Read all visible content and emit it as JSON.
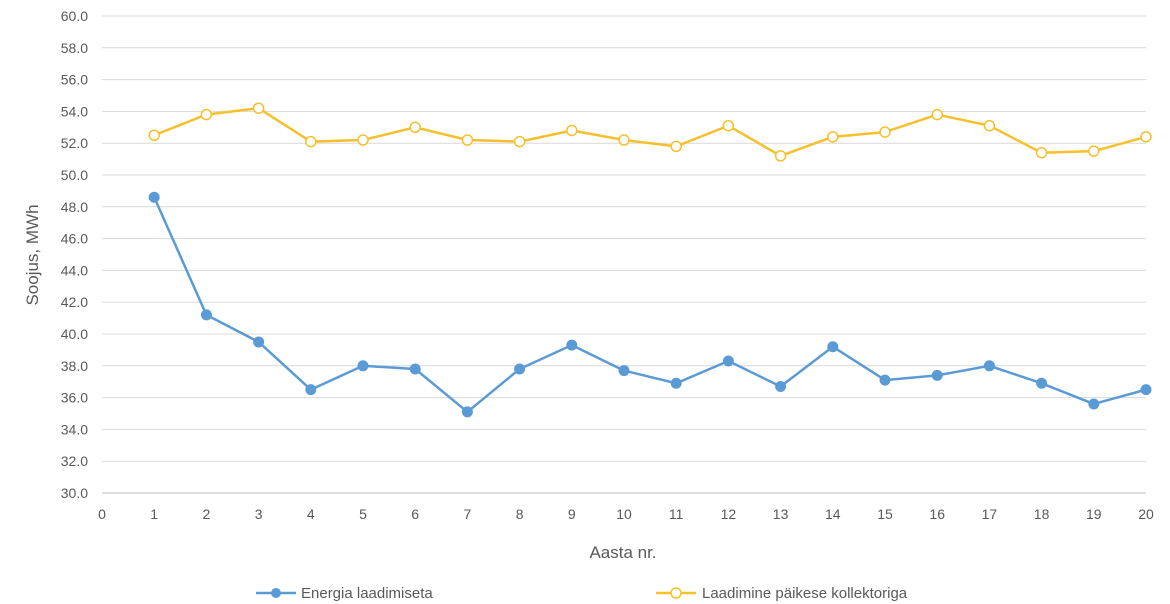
{
  "chart_data": {
    "type": "line",
    "title": "",
    "xlabel": "Aasta nr.",
    "ylabel": "Soojus, MWh",
    "xlim": [
      0,
      20
    ],
    "ylim": [
      30,
      60
    ],
    "x_ticks": [
      "0",
      "1",
      "2",
      "3",
      "4",
      "5",
      "6",
      "7",
      "8",
      "9",
      "10",
      "11",
      "12",
      "13",
      "14",
      "15",
      "16",
      "17",
      "18",
      "19",
      "20"
    ],
    "y_ticks": [
      "30.0",
      "32.0",
      "34.0",
      "36.0",
      "38.0",
      "40.0",
      "42.0",
      "44.0",
      "46.0",
      "48.0",
      "50.0",
      "52.0",
      "54.0",
      "56.0",
      "58.0",
      "60.0"
    ],
    "grid": "horizontal",
    "legend_position": "bottom",
    "x": [
      1,
      2,
      3,
      4,
      5,
      6,
      7,
      8,
      9,
      10,
      11,
      12,
      13,
      14,
      15,
      16,
      17,
      18,
      19,
      20
    ],
    "series": [
      {
        "name": "Energia laadimiseta",
        "color": "#5b9bd5",
        "marker": "filled-circle",
        "values": [
          48.6,
          41.2,
          39.5,
          36.5,
          38.0,
          37.8,
          35.1,
          37.8,
          39.3,
          37.7,
          36.9,
          38.3,
          36.7,
          39.2,
          37.1,
          37.4,
          38.0,
          36.9,
          35.6,
          36.5
        ]
      },
      {
        "name": "Laadimine päikese kollektoriga",
        "color": "#f5c02c",
        "marker": "hollow-circle",
        "values": [
          52.5,
          53.8,
          54.2,
          52.1,
          52.2,
          53.0,
          52.2,
          52.1,
          52.8,
          52.2,
          51.8,
          53.1,
          51.2,
          52.4,
          52.7,
          53.8,
          53.1,
          51.4,
          51.5,
          52.4
        ]
      }
    ]
  }
}
